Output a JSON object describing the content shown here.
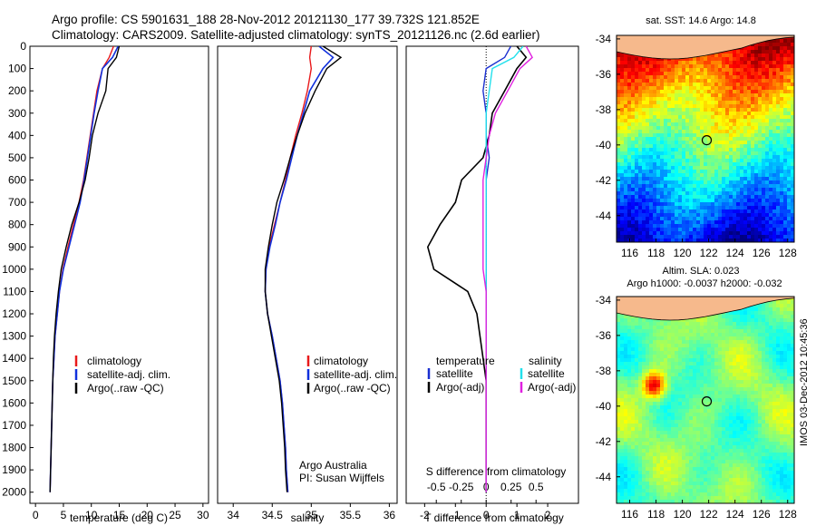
{
  "header": {
    "line1": "Argo profile: CS 5901631_188 28-Nov-2012 20121130_177 39.732S 121.852E",
    "line2": "Climatology: CARS2009. Satellite-adjusted climatology: synTS_20121126.nc (2.6d earlier)"
  },
  "colors": {
    "climatology": "#e8191b",
    "satellite": "#1030dd",
    "argo": "#000000",
    "temp_satellite": "#1a2fd0",
    "sal_satellite": "#22e0ec",
    "sal_argo": "#e020e0",
    "land": "#f6b98c"
  },
  "chart_data": [
    {
      "type": "line",
      "panel": "temperature",
      "xlabel": "temperature (deg C)",
      "ylabel": "",
      "xlim": [
        -1,
        31
      ],
      "ylim": [
        2050,
        0
      ],
      "xticks": [
        0,
        5,
        10,
        15,
        20,
        25,
        30
      ],
      "yticks": [
        0,
        100,
        200,
        300,
        400,
        500,
        600,
        700,
        800,
        900,
        1000,
        1100,
        1200,
        1300,
        1400,
        1500,
        1600,
        1700,
        1800,
        1900,
        2000
      ],
      "legend": [
        "climatology",
        "satellite-adj. clim.",
        "Argo(..raw -QC)"
      ],
      "series": [
        {
          "name": "climatology",
          "x": [
            14.0,
            13.2,
            12.0,
            11.0,
            10.4,
            9.8,
            9.2,
            8.6,
            7.8,
            6.8,
            5.8,
            4.9,
            4.3,
            3.9,
            3.5,
            3.3,
            3.1,
            3.0,
            2.9,
            2.8,
            2.7,
            2.6
          ],
          "y": [
            0,
            50,
            100,
            200,
            300,
            400,
            500,
            600,
            700,
            800,
            900,
            1000,
            1100,
            1200,
            1300,
            1400,
            1500,
            1600,
            1700,
            1800,
            1900,
            2000
          ]
        },
        {
          "name": "satellite-adj. clim.",
          "x": [
            14.8,
            13.8,
            12.0,
            11.2,
            10.5,
            9.9,
            9.3,
            8.7,
            8.0,
            7.0,
            6.0,
            5.0,
            4.3,
            3.9,
            3.5,
            3.3,
            3.1,
            3.0,
            2.9,
            2.8,
            2.7,
            2.6
          ],
          "y": [
            0,
            50,
            100,
            200,
            300,
            400,
            500,
            600,
            700,
            800,
            900,
            1000,
            1100,
            1200,
            1300,
            1400,
            1500,
            1600,
            1700,
            1800,
            1900,
            2000
          ]
        },
        {
          "name": "Argo(..raw -QC)",
          "x": [
            15.0,
            14.5,
            13.0,
            12.6,
            11.2,
            10.2,
            9.6,
            8.9,
            7.8,
            6.5,
            5.5,
            4.6,
            4.1,
            3.7,
            3.4,
            3.2,
            3.1,
            3.0,
            2.9,
            2.8,
            2.7,
            2.6
          ],
          "y": [
            0,
            50,
            100,
            200,
            300,
            400,
            500,
            600,
            700,
            800,
            900,
            1000,
            1100,
            1200,
            1300,
            1400,
            1500,
            1600,
            1700,
            1800,
            1900,
            2000
          ]
        }
      ]
    },
    {
      "type": "line",
      "panel": "salinity",
      "xlabel": "salinity",
      "xlim": [
        33.8,
        36.1
      ],
      "ylim": [
        2050,
        0
      ],
      "xticks": [
        34,
        34.5,
        35,
        35.5,
        36
      ],
      "xticklabels": [
        "34",
        "34.5",
        "35",
        "35.5",
        "36"
      ],
      "legend": [
        "climatology",
        "satellite-adj. clim.",
        "Argo(..raw -QC)"
      ],
      "annotation": [
        "Argo Australia",
        "PI: Susan Wijffels"
      ],
      "series": [
        {
          "name": "climatology",
          "x": [
            35.0,
            34.98,
            35.0,
            34.95,
            34.88,
            34.8,
            34.73,
            34.67,
            34.6,
            34.53,
            34.46,
            34.42,
            34.41,
            34.44,
            34.5,
            34.55,
            34.6,
            34.63,
            34.65,
            34.67,
            34.68,
            34.7
          ],
          "y": [
            0,
            50,
            100,
            200,
            300,
            400,
            500,
            600,
            700,
            800,
            900,
            1000,
            1100,
            1200,
            1300,
            1400,
            1500,
            1600,
            1700,
            1800,
            1900,
            2000
          ]
        },
        {
          "name": "satellite-adj. clim.",
          "x": [
            35.1,
            35.28,
            35.15,
            34.98,
            34.9,
            34.82,
            34.75,
            34.68,
            34.6,
            34.54,
            34.47,
            34.42,
            34.41,
            34.44,
            34.5,
            34.55,
            34.6,
            34.63,
            34.65,
            34.67,
            34.68,
            34.7
          ],
          "y": [
            0,
            50,
            100,
            200,
            300,
            400,
            500,
            600,
            700,
            800,
            900,
            1000,
            1100,
            1200,
            1300,
            1400,
            1500,
            1600,
            1700,
            1800,
            1900,
            2000
          ]
        },
        {
          "name": "Argo(..raw -QC)",
          "x": [
            35.15,
            35.38,
            35.2,
            35.05,
            34.92,
            34.82,
            34.73,
            34.65,
            34.56,
            34.5,
            34.45,
            34.41,
            34.41,
            34.44,
            34.49,
            34.54,
            34.59,
            34.62,
            34.64,
            34.66,
            34.67,
            34.69
          ],
          "y": [
            0,
            50,
            100,
            200,
            300,
            400,
            500,
            600,
            700,
            800,
            900,
            1000,
            1100,
            1200,
            1300,
            1400,
            1500,
            1600,
            1700,
            1800,
            1900,
            2000
          ]
        }
      ]
    },
    {
      "type": "line",
      "panel": "difference",
      "xlabel": "T difference from climatology",
      "xlabel_top": "S difference from climatology",
      "xlim": [
        -2.6,
        3.0
      ],
      "ylim": [
        2050,
        0
      ],
      "xticks": [
        -2,
        -1,
        0,
        1,
        2
      ],
      "top_ticks": [
        -0.5,
        -0.25,
        0,
        0.25,
        0.5
      ],
      "top_ticklabels": [
        "-0.5",
        "-0.25",
        "0",
        "0.25",
        "0.5"
      ],
      "legend": {
        "temperature_header": "temperature",
        "salinity_header": "salinity",
        "temperature": [
          "satellite",
          "Argo(-adj)"
        ],
        "salinity": [
          "satellite",
          "Argo(-adj)"
        ]
      },
      "series": [
        {
          "name": "temperature satellite",
          "x": [
            0.8,
            0.6,
            0.0,
            -0.1,
            0.0,
            0.0,
            0.1,
            0.0,
            0.0,
            0.0,
            0.0,
            0.0,
            0.0,
            0.0,
            0.0,
            0.0,
            0.0,
            0.0,
            0.0,
            0.0,
            0.0,
            0.0
          ],
          "y": [
            0,
            50,
            100,
            200,
            300,
            400,
            500,
            600,
            700,
            800,
            900,
            1000,
            1100,
            1200,
            1300,
            1400,
            1500,
            1600,
            1700,
            1800,
            1900,
            2000
          ]
        },
        {
          "name": "temperature Argo(-adj)",
          "x": [
            1.0,
            1.3,
            1.0,
            0.6,
            0.2,
            0.1,
            -0.1,
            -0.8,
            -1.0,
            -1.5,
            -1.9,
            -1.7,
            -0.6,
            -0.3,
            -0.2,
            -0.1,
            0.0,
            0.0,
            0.0,
            0.0,
            0.0,
            0.0
          ],
          "y": [
            0,
            50,
            100,
            200,
            300,
            400,
            500,
            600,
            700,
            800,
            900,
            1000,
            1100,
            1200,
            1300,
            1400,
            1500,
            1600,
            1700,
            1800,
            1900,
            2000
          ]
        },
        {
          "name": "salinity satellite",
          "x": [
            1.2,
            0.9,
            0.2,
            0.1,
            0.0,
            0.0,
            0.0,
            0.0,
            0.0,
            0.0,
            0.0,
            0.0,
            0.0,
            0.0,
            0.0,
            0.0,
            0.0,
            0.0,
            0.0,
            0.0,
            0.0,
            0.0
          ],
          "y": [
            0,
            50,
            100,
            200,
            300,
            400,
            500,
            600,
            700,
            800,
            900,
            1000,
            1100,
            1200,
            1300,
            1400,
            1500,
            1600,
            1700,
            1800,
            1900,
            2000
          ]
        },
        {
          "name": "salinity Argo(-adj)",
          "x": [
            1.3,
            1.5,
            1.1,
            0.7,
            0.3,
            0.1,
            0.0,
            -0.1,
            -0.1,
            -0.1,
            -0.1,
            -0.1,
            0.0,
            0.0,
            0.0,
            0.0,
            0.0,
            0.0,
            0.0,
            0.0,
            0.0,
            0.0
          ],
          "y": [
            0,
            50,
            100,
            200,
            300,
            400,
            500,
            600,
            700,
            800,
            900,
            1000,
            1100,
            1200,
            1300,
            1400,
            1500,
            1600,
            1700,
            1800,
            1900,
            2000
          ]
        }
      ]
    },
    {
      "type": "heatmap",
      "panel": "sst_map",
      "title": "sat. SST: 14.6 Argo: 14.8",
      "xlim": [
        115,
        128.5
      ],
      "ylim": [
        -45.5,
        -33.8
      ],
      "xticks": [
        116,
        118,
        120,
        122,
        124,
        126,
        128
      ],
      "yticks": [
        -34,
        -36,
        -38,
        -40,
        -42,
        -44
      ],
      "marker": {
        "lon": 121.852,
        "lat": -39.732
      }
    },
    {
      "type": "heatmap",
      "panel": "sla_map",
      "title": [
        "Altim. SLA: 0.023",
        "Argo h1000: -0.0037 h2000: -0.032"
      ],
      "xlim": [
        115,
        128.5
      ],
      "ylim": [
        -45.5,
        -33.8
      ],
      "xticks": [
        116,
        118,
        120,
        122,
        124,
        126,
        128
      ],
      "yticks": [
        -34,
        -36,
        -38,
        -40,
        -42,
        -44
      ],
      "marker": {
        "lon": 121.852,
        "lat": -39.732
      }
    }
  ],
  "credit": "IMOS 03-Dec-2012 10:45:36"
}
